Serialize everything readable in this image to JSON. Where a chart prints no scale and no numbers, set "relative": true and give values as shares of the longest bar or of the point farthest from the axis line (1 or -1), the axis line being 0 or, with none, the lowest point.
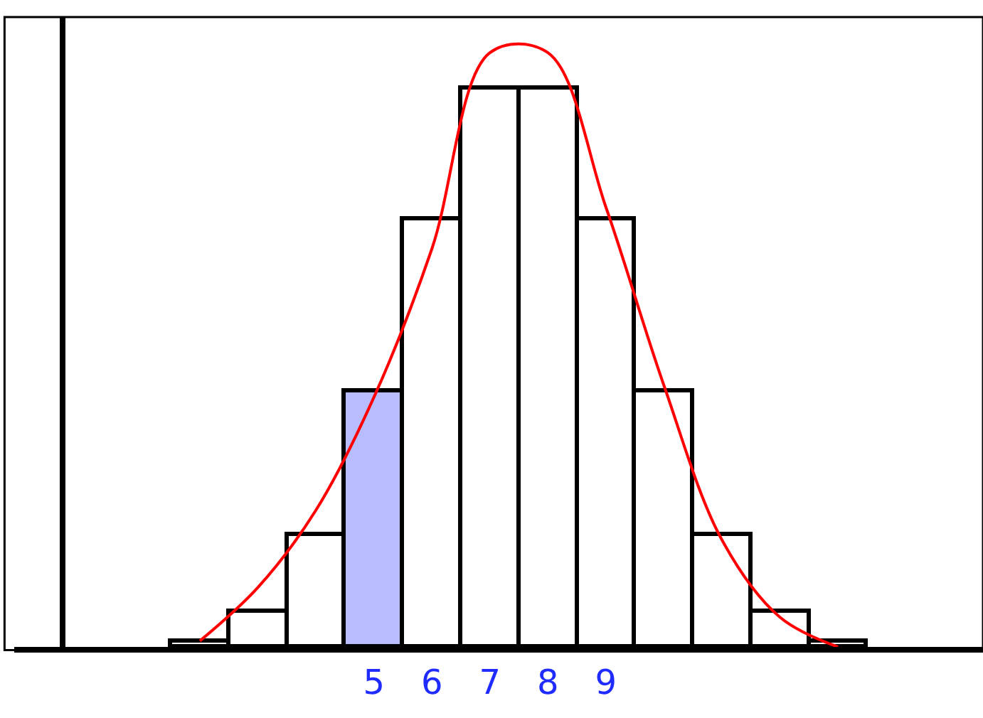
{
  "chart_data": {
    "type": "bar",
    "relative": true,
    "categories": [
      null,
      null,
      null,
      "5",
      "6",
      "7",
      "8",
      "9",
      null,
      null,
      null,
      null
    ],
    "series": [
      {
        "color": "#000000",
        "colors": [
          "#ffffff",
          "#ffffff",
          "#ffffff",
          "#b8bdff",
          "#ffffff",
          "#ffffff",
          "#ffffff",
          "#ffffff",
          "#ffffff",
          "#ffffff",
          "#ffffff",
          "#ffffff"
        ],
        "values": [
          0.01,
          0.06,
          0.19,
          0.43,
          0.72,
          0.94,
          0.94,
          0.72,
          0.43,
          0.19,
          0.06,
          0.01
        ]
      },
      {
        "type": "line",
        "color": "#ff0000",
        "values": [
          0.01,
          0.1,
          0.23,
          0.42,
          0.67,
          1,
          1,
          0.74,
          0.44,
          0.18,
          0.05,
          0
        ]
      }
    ],
    "line_style": "solid"
  }
}
